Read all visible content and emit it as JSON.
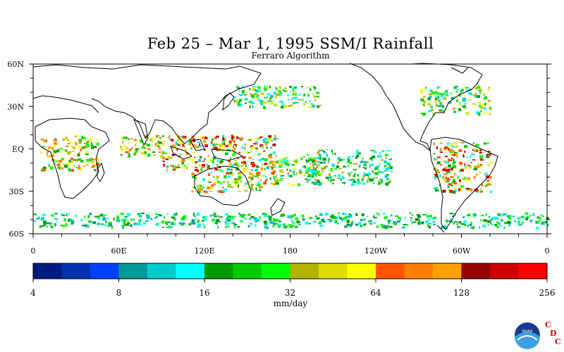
{
  "title": "Feb 25 – Mar 1, 1995 SSM/I Rainfall",
  "subtitle": "Ferraro Algorithm",
  "lat_labels": [
    "60N",
    "30N",
    "EQ",
    "30S",
    "60S"
  ],
  "lon_labels": [
    "0",
    "60E",
    "120E",
    "180",
    "120W",
    "60W",
    "0"
  ],
  "colorbar": {
    "colors": [
      "#001a80",
      "#0033b3",
      "#0040ff",
      "#009999",
      "#00cccc",
      "#00ffff",
      "#009900",
      "#00cc00",
      "#00ff00",
      "#b3b300",
      "#dddd00",
      "#ffff00",
      "#ff5500",
      "#ff8000",
      "#ffa000",
      "#990000",
      "#cc0000",
      "#ff0000"
    ],
    "tick_labels": [
      "4",
      "8",
      "16",
      "32",
      "64",
      "128",
      "256"
    ],
    "units": "mm/day"
  },
  "logo": {
    "text": "NOAA",
    "letters": [
      "C",
      "D",
      "C"
    ]
  },
  "chart_data": {
    "type": "heatmap",
    "title": "Feb 25 – Mar 1, 1995 SSM/I Rainfall",
    "subtitle": "Ferraro Algorithm",
    "xlabel": "",
    "ylabel": "",
    "x_range": [
      0,
      360
    ],
    "y_range": [
      -60,
      60
    ],
    "scale": "log2",
    "bins": [
      4,
      256
    ],
    "units": "mm/day",
    "rain_regions": [
      {
        "lon": [
          5,
          45
        ],
        "lat": [
          -15,
          10
        ],
        "level": [
          6,
          14
        ]
      },
      {
        "lon": [
          60,
          90
        ],
        "lat": [
          -5,
          10
        ],
        "level": [
          6,
          12
        ]
      },
      {
        "lon": [
          90,
          170
        ],
        "lat": [
          -15,
          10
        ],
        "level": [
          4,
          17
        ]
      },
      {
        "lon": [
          110,
          160
        ],
        "lat": [
          -30,
          -15
        ],
        "level": [
          5,
          14
        ]
      },
      {
        "lon": [
          160,
          200
        ],
        "lat": [
          -25,
          -5
        ],
        "level": [
          4,
          12
        ]
      },
      {
        "lon": [
          140,
          200
        ],
        "lat": [
          30,
          45
        ],
        "level": [
          4,
          10
        ]
      },
      {
        "lon": [
          190,
          250
        ],
        "lat": [
          -25,
          0
        ],
        "level": [
          4,
          9
        ]
      },
      {
        "lon": [
          280,
          320
        ],
        "lat": [
          -30,
          5
        ],
        "level": [
          5,
          17
        ]
      },
      {
        "lon": [
          270,
          320
        ],
        "lat": [
          25,
          45
        ],
        "level": [
          4,
          11
        ]
      },
      {
        "lon": [
          0,
          360
        ],
        "lat": [
          -55,
          -45
        ],
        "level": [
          3,
          8
        ]
      }
    ]
  }
}
